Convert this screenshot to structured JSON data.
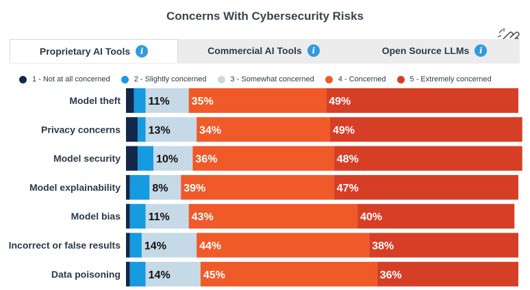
{
  "title": "Concerns With Cybersecurity Risks",
  "tabs": [
    {
      "label": "Proprietary AI Tools",
      "active": true
    },
    {
      "label": "Commercial AI Tools",
      "active": false
    },
    {
      "label": "Open Source LLMs",
      "active": false
    }
  ],
  "icons": {
    "info": "info-icon",
    "pointer": "hand-pointer-icon"
  },
  "chart_data": {
    "type": "bar",
    "orientation": "horizontal",
    "stacked": true,
    "xlim": [
      0,
      100
    ],
    "grid": false,
    "legend_placement": "top",
    "categories": [
      "Model theft",
      "Privacy concerns",
      "Model security",
      "Model explainability",
      "Model bias",
      "Incorrect or false results",
      "Data poisoning"
    ],
    "series": [
      {
        "name": "1 - Not at all concerned",
        "color": "#12284a",
        "values": [
          2,
          3,
          3,
          1,
          1,
          1,
          1
        ]
      },
      {
        "name": "2 - Slightly concerned",
        "color": "#169ae0",
        "values": [
          3,
          2,
          4,
          5,
          4,
          3,
          4
        ]
      },
      {
        "name": "3 - Somewhat concerned",
        "color": "#c6d9e6",
        "values": [
          11,
          13,
          10,
          8,
          11,
          14,
          14
        ]
      },
      {
        "name": "4 - Concerned",
        "color": "#f05a28",
        "values": [
          35,
          34,
          36,
          39,
          43,
          44,
          45
        ]
      },
      {
        "name": "5 - Extremely concerned",
        "color": "#d63f26",
        "values": [
          49,
          49,
          48,
          47,
          40,
          38,
          36
        ]
      }
    ],
    "data_labels": [
      [
        "11%",
        "35%",
        "49%"
      ],
      [
        "13%",
        "34%",
        "49%"
      ],
      [
        "10%",
        "36%",
        "48%"
      ],
      [
        "8%",
        "39%",
        "47%"
      ],
      [
        "11%",
        "43%",
        "40%"
      ],
      [
        "14%",
        "44%",
        "38%"
      ],
      [
        "14%",
        "45%",
        "36%"
      ]
    ]
  }
}
